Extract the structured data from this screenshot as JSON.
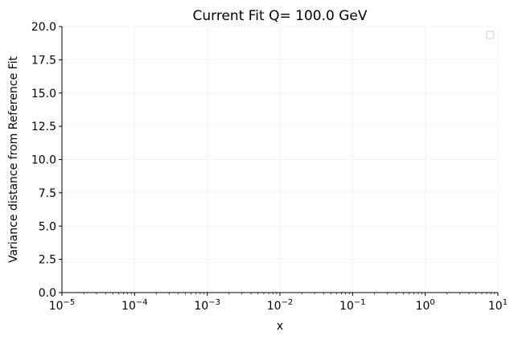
{
  "chart_data": {
    "type": "line",
    "title": "Current Fit Q= 100.0 GeV",
    "xlabel": "x",
    "ylabel": "Variance distance from Reference Fit",
    "xscale": "log",
    "xlim": [
      1e-05,
      10
    ],
    "ylim": [
      0,
      20
    ],
    "x_major_ticks": [
      {
        "value": 1e-05,
        "base": "10",
        "exp": "−5"
      },
      {
        "value": 0.0001,
        "base": "10",
        "exp": "−4"
      },
      {
        "value": 0.001,
        "base": "10",
        "exp": "−3"
      },
      {
        "value": 0.01,
        "base": "10",
        "exp": "−2"
      },
      {
        "value": 0.1,
        "base": "10",
        "exp": "−1"
      },
      {
        "value": 1,
        "base": "10",
        "exp": "0"
      },
      {
        "value": 10,
        "base": "10",
        "exp": "1"
      }
    ],
    "y_ticks": [
      {
        "value": 0,
        "label": "0.0"
      },
      {
        "value": 2.5,
        "label": "2.5"
      },
      {
        "value": 5,
        "label": "5.0"
      },
      {
        "value": 7.5,
        "label": "7.5"
      },
      {
        "value": 10,
        "label": "10.0"
      },
      {
        "value": 12.5,
        "label": "12.5"
      },
      {
        "value": 15,
        "label": "15.0"
      },
      {
        "value": 17.5,
        "label": "17.5"
      },
      {
        "value": 20,
        "label": "20.0"
      }
    ],
    "grid": true,
    "legend": {
      "placement": "top-right",
      "entries": []
    },
    "series": []
  }
}
